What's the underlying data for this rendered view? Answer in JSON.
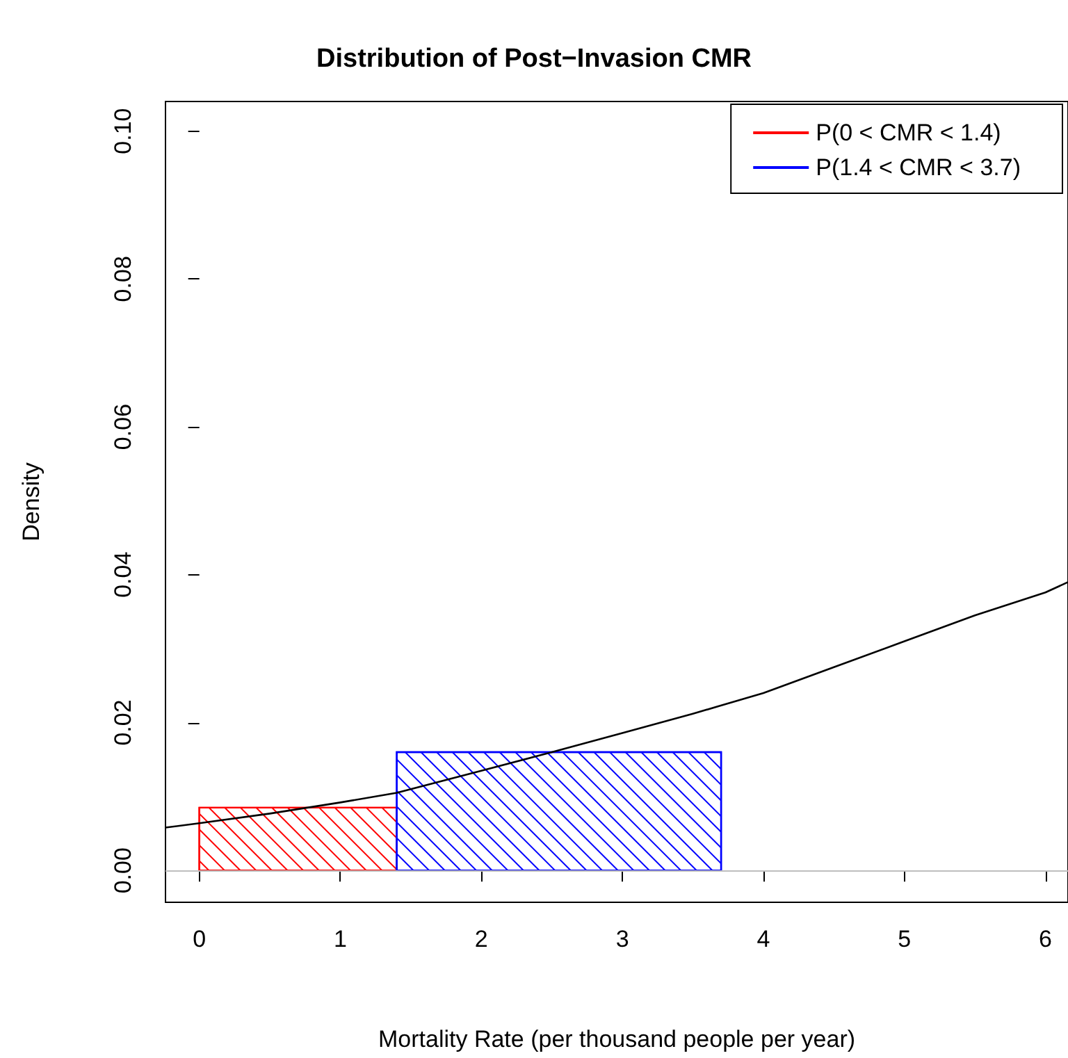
{
  "chart_data": {
    "type": "histogram",
    "title": "Distribution of Post−Invasion CMR",
    "xlabel": "Mortality Rate (per thousand people per year)",
    "ylabel": "Density",
    "series": [
      {
        "name": "P(0 < CMR < 1.4)",
        "color": "#ff0000",
        "bins": [
          0,
          1.4
        ],
        "values": [
          0.0085
        ]
      },
      {
        "name": "P(1.4 < CMR < 3.7)",
        "color": "#0000ff",
        "bins": [
          1.4,
          3.7
        ],
        "values": [
          0.016
        ]
      },
      {
        "type": "line",
        "color": "#000000",
        "x": [
          -0.24,
          0,
          0.5,
          1,
          1.4,
          2,
          2.5,
          3,
          3.5,
          4,
          4.5,
          5,
          5.5,
          6,
          6.16
        ],
        "values": [
          0.0058,
          0.0064,
          0.0077,
          0.0092,
          0.0105,
          0.0135,
          0.016,
          0.0186,
          0.0212,
          0.024,
          0.0275,
          0.031,
          0.0345,
          0.0376,
          0.039
        ]
      }
    ],
    "xlim": [
      -0.24,
      6.16
    ],
    "xticks": [
      0,
      1,
      2,
      3,
      4,
      5,
      6
    ],
    "ylim": [
      -0.0043,
      0.104
    ],
    "yticks": [
      {
        "value": 0,
        "label": "0.00"
      },
      {
        "value": 0.02,
        "label": "0.02"
      },
      {
        "value": 0.04,
        "label": "0.04"
      },
      {
        "value": 0.06,
        "label": "0.06"
      },
      {
        "value": 0.08,
        "label": "0.08"
      },
      {
        "value": 0.1,
        "label": "0.10"
      }
    ],
    "ref_lines": [
      {
        "axis": "y",
        "value": 0,
        "color": "#bebebe"
      }
    ],
    "legend": "top right",
    "grid": false
  }
}
